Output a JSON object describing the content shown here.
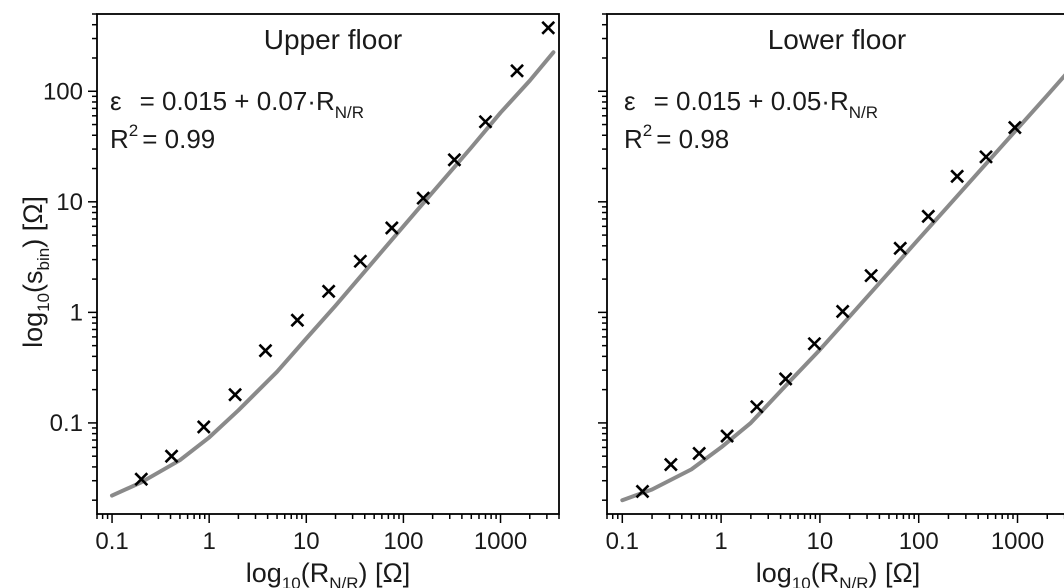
{
  "chart_data": [
    {
      "type": "scatter",
      "title": "Upper floor",
      "annotation": {
        "equation_prefix": "ε",
        "equation_body": "= 0.015 + 0.07·R",
        "equation_sub": "N/R",
        "r2_prefix": "R",
        "r2_sup": "2",
        "r2_value": "= 0.99"
      },
      "x_scale": "log",
      "y_scale": "log",
      "xlim": [
        0.07,
        4000
      ],
      "ylim": [
        0.015,
        500
      ],
      "x_ticks": [
        {
          "value": 0.1,
          "label": "0.1"
        },
        {
          "value": 1,
          "label": "1"
        },
        {
          "value": 10,
          "label": "10"
        },
        {
          "value": 100,
          "label": "100"
        },
        {
          "value": 1000,
          "label": "1000"
        }
      ],
      "y_ticks": [
        {
          "value": 0.1,
          "label": "0.1"
        },
        {
          "value": 1,
          "label": "1"
        },
        {
          "value": 10,
          "label": "10"
        },
        {
          "value": 100,
          "label": "100"
        }
      ],
      "xlabel": {
        "main": "log",
        "sub1": "10",
        "open": "(R",
        "sub2": "N/R",
        "close": ") [Ω]"
      },
      "ylabel": {
        "main": "log",
        "sub1": "10",
        "open": "(s",
        "sub2": "bin",
        "close": ") [Ω]"
      },
      "points": [
        {
          "x": 0.2,
          "y": 0.031
        },
        {
          "x": 0.41,
          "y": 0.05
        },
        {
          "x": 0.88,
          "y": 0.092
        },
        {
          "x": 1.85,
          "y": 0.18
        },
        {
          "x": 3.8,
          "y": 0.45
        },
        {
          "x": 8.1,
          "y": 0.85
        },
        {
          "x": 17,
          "y": 1.55
        },
        {
          "x": 36,
          "y": 2.9
        },
        {
          "x": 76,
          "y": 5.8
        },
        {
          "x": 160,
          "y": 10.8
        },
        {
          "x": 335,
          "y": 24
        },
        {
          "x": 700,
          "y": 53
        },
        {
          "x": 1480,
          "y": 153
        },
        {
          "x": 3100,
          "y": 375
        }
      ],
      "fit_line": [
        {
          "x": 0.1,
          "y": 0.022
        },
        {
          "x": 0.2,
          "y": 0.029
        },
        {
          "x": 0.5,
          "y": 0.046
        },
        {
          "x": 1,
          "y": 0.074
        },
        {
          "x": 2,
          "y": 0.13
        },
        {
          "x": 5,
          "y": 0.29
        },
        {
          "x": 10,
          "y": 0.58
        },
        {
          "x": 20,
          "y": 1.15
        },
        {
          "x": 50,
          "y": 2.95
        },
        {
          "x": 100,
          "y": 6.0
        },
        {
          "x": 200,
          "y": 12.2
        },
        {
          "x": 500,
          "y": 31
        },
        {
          "x": 1000,
          "y": 64
        },
        {
          "x": 2000,
          "y": 125
        },
        {
          "x": 3500,
          "y": 225
        }
      ]
    },
    {
      "type": "scatter",
      "title": "Lower floor",
      "annotation": {
        "equation_prefix": "ε",
        "equation_body": "= 0.015 + 0.05·R",
        "equation_sub": "N/R",
        "r2_prefix": "R",
        "r2_sup": "2",
        "r2_value": "= 0.98"
      },
      "x_scale": "log",
      "y_scale": "log",
      "xlim": [
        0.07,
        4000
      ],
      "ylim": [
        0.015,
        500
      ],
      "x_ticks": [
        {
          "value": 0.1,
          "label": "0.1"
        },
        {
          "value": 1,
          "label": "1"
        },
        {
          "value": 10,
          "label": "10"
        },
        {
          "value": 100,
          "label": "100"
        },
        {
          "value": 1000,
          "label": "1000"
        }
      ],
      "y_ticks": [
        {
          "value": 0.1,
          "label": ""
        },
        {
          "value": 1,
          "label": ""
        },
        {
          "value": 10,
          "label": ""
        },
        {
          "value": 100,
          "label": ""
        }
      ],
      "xlabel": {
        "main": "log",
        "sub1": "10",
        "open": "(R",
        "sub2": "N/R",
        "close": ") [Ω]"
      },
      "ylabel": null,
      "points": [
        {
          "x": 0.16,
          "y": 0.024
        },
        {
          "x": 0.31,
          "y": 0.042
        },
        {
          "x": 0.6,
          "y": 0.053
        },
        {
          "x": 1.15,
          "y": 0.076
        },
        {
          "x": 2.3,
          "y": 0.14
        },
        {
          "x": 4.5,
          "y": 0.25
        },
        {
          "x": 8.8,
          "y": 0.52
        },
        {
          "x": 17,
          "y": 1.02
        },
        {
          "x": 33,
          "y": 2.15
        },
        {
          "x": 65,
          "y": 3.8
        },
        {
          "x": 125,
          "y": 7.4
        },
        {
          "x": 245,
          "y": 17
        },
        {
          "x": 480,
          "y": 25.5
        },
        {
          "x": 940,
          "y": 47
        }
      ],
      "fit_line": [
        {
          "x": 0.1,
          "y": 0.02
        },
        {
          "x": 0.2,
          "y": 0.025
        },
        {
          "x": 0.5,
          "y": 0.038
        },
        {
          "x": 1,
          "y": 0.06
        },
        {
          "x": 2,
          "y": 0.1
        },
        {
          "x": 5,
          "y": 0.24
        },
        {
          "x": 10,
          "y": 0.46
        },
        {
          "x": 20,
          "y": 0.92
        },
        {
          "x": 50,
          "y": 2.3
        },
        {
          "x": 100,
          "y": 4.6
        },
        {
          "x": 200,
          "y": 9.2
        },
        {
          "x": 500,
          "y": 23
        },
        {
          "x": 1000,
          "y": 46
        },
        {
          "x": 2000,
          "y": 92
        },
        {
          "x": 3500,
          "y": 162
        }
      ]
    }
  ]
}
